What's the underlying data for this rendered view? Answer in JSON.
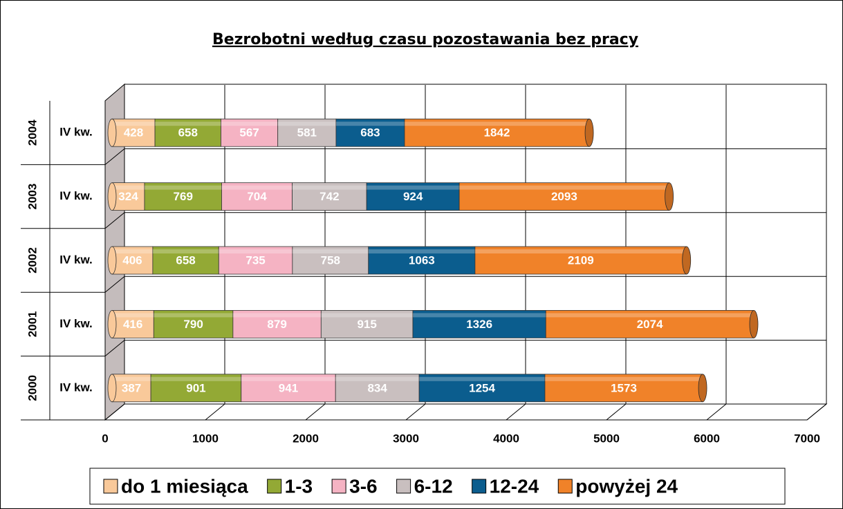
{
  "chart_data": {
    "type": "bar",
    "orientation": "horizontal",
    "stacked": true,
    "title": "Bezrobotni według czasu pozostawania bez pracy",
    "categories": [
      "2000",
      "2001",
      "2002",
      "2003",
      "2004"
    ],
    "category_sublabels": [
      "IV kw.",
      "IV kw.",
      "IV kw.",
      "IV kw.",
      "IV kw."
    ],
    "series": [
      {
        "name": "do 1 miesiąca",
        "color": "#f9c99a",
        "values": [
          387,
          416,
          406,
          324,
          428
        ]
      },
      {
        "name": "1-3",
        "color": "#93a935",
        "values": [
          901,
          790,
          658,
          769,
          658
        ]
      },
      {
        "name": "3-6",
        "color": "#f5b3c3",
        "values": [
          941,
          879,
          735,
          704,
          567
        ]
      },
      {
        "name": "6-12",
        "color": "#c9bfbf",
        "values": [
          834,
          915,
          758,
          742,
          581
        ]
      },
      {
        "name": "12-24",
        "color": "#0b5d8e",
        "values": [
          1254,
          1326,
          1063,
          924,
          683
        ]
      },
      {
        "name": "powyżej 24",
        "color": "#f08229",
        "values": [
          1573,
          2074,
          2109,
          2093,
          1842
        ]
      }
    ],
    "xlim": [
      0,
      7000
    ],
    "xticks": [
      0,
      1000,
      2000,
      3000,
      4000,
      5000,
      6000,
      7000
    ],
    "grid": true,
    "legend": "bottom"
  }
}
